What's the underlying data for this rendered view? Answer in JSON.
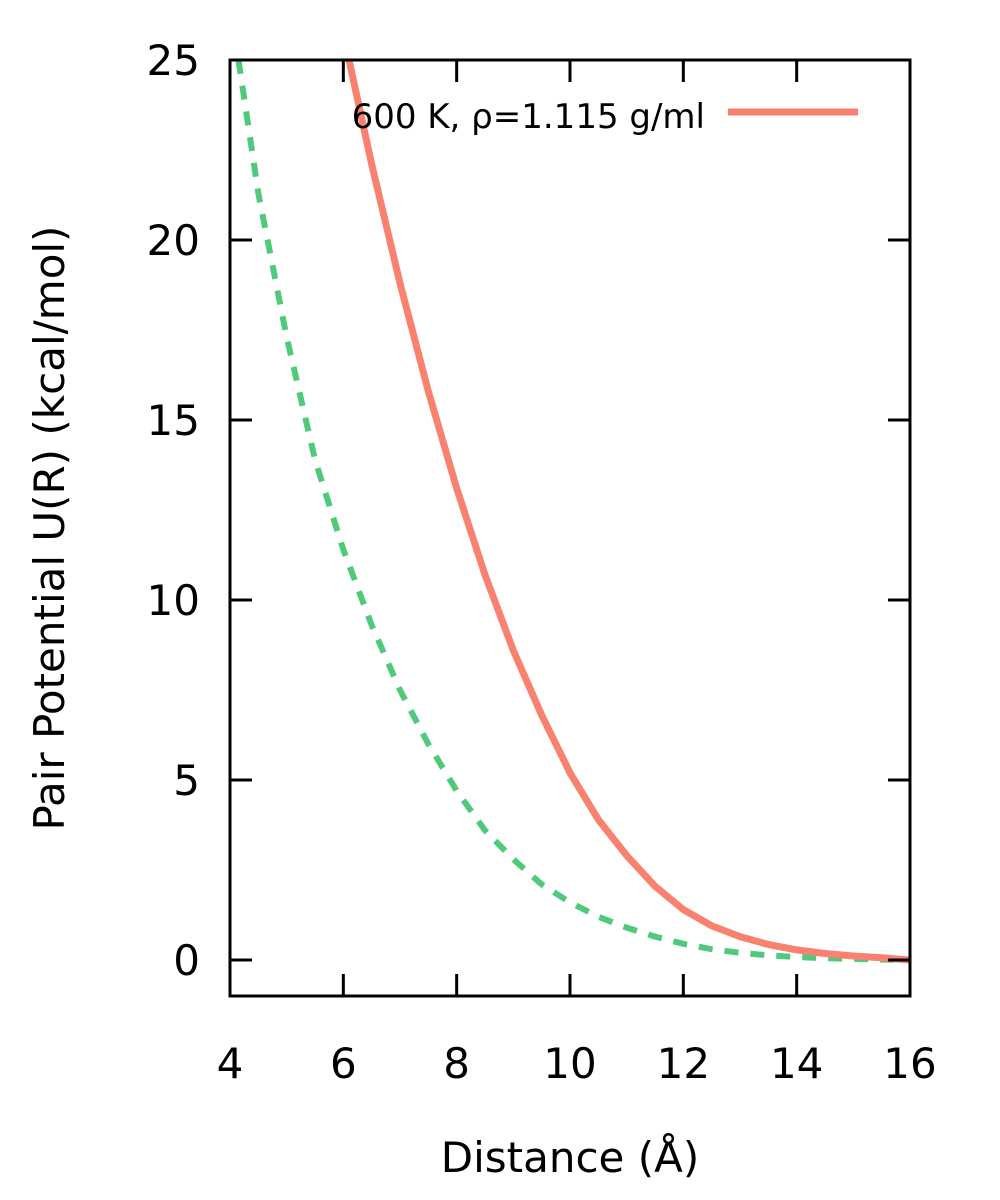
{
  "chart_data": {
    "type": "line",
    "title": "",
    "xlabel": "Distance (Å)",
    "ylabel": "Pair Potential U(R) (kcal/mol)",
    "xlim": [
      4,
      16
    ],
    "ylim": [
      -1,
      25
    ],
    "xticks": [
      4,
      6,
      8,
      10,
      12,
      14,
      16
    ],
    "yticks": [
      0,
      5,
      10,
      15,
      20,
      25
    ],
    "x_tick_labels": [
      "4",
      "6",
      "8",
      "10",
      "12",
      "14",
      "16"
    ],
    "y_tick_labels": [
      "0",
      "5",
      "10",
      "15",
      "20",
      "25"
    ],
    "grid": false,
    "legend_position": "top-right",
    "series": [
      {
        "name": "600 K, ρ=1.115 g/ml",
        "color": "#f8826f",
        "style": "solid",
        "x": [
          6.1,
          6.5,
          7,
          7.5,
          8,
          8.5,
          9,
          9.5,
          10,
          10.5,
          11,
          11.5,
          12,
          12.5,
          13,
          13.5,
          14,
          14.5,
          15,
          15.5,
          16
        ],
        "y": [
          25,
          22.1,
          18.8,
          15.8,
          13.1,
          10.7,
          8.6,
          6.8,
          5.2,
          3.9,
          2.9,
          2.05,
          1.4,
          0.95,
          0.65,
          0.43,
          0.28,
          0.18,
          0.11,
          0.06,
          0.0
        ]
      },
      {
        "name": "",
        "color": "#4fc97a",
        "style": "dashed",
        "x": [
          4.15,
          4.5,
          5,
          5.5,
          6,
          6.5,
          7,
          7.5,
          8,
          8.5,
          9,
          9.5,
          10,
          10.5,
          11,
          11.5,
          12,
          12.5,
          13,
          13.5,
          14,
          14.5,
          15,
          15.5,
          16
        ],
        "y": [
          25,
          21.3,
          17.3,
          13.9,
          11.4,
          9.3,
          7.5,
          6.0,
          4.7,
          3.6,
          2.8,
          2.1,
          1.6,
          1.2,
          0.9,
          0.65,
          0.45,
          0.3,
          0.2,
          0.13,
          0.08,
          0.05,
          0.03,
          0.01,
          0.0
        ]
      }
    ]
  }
}
